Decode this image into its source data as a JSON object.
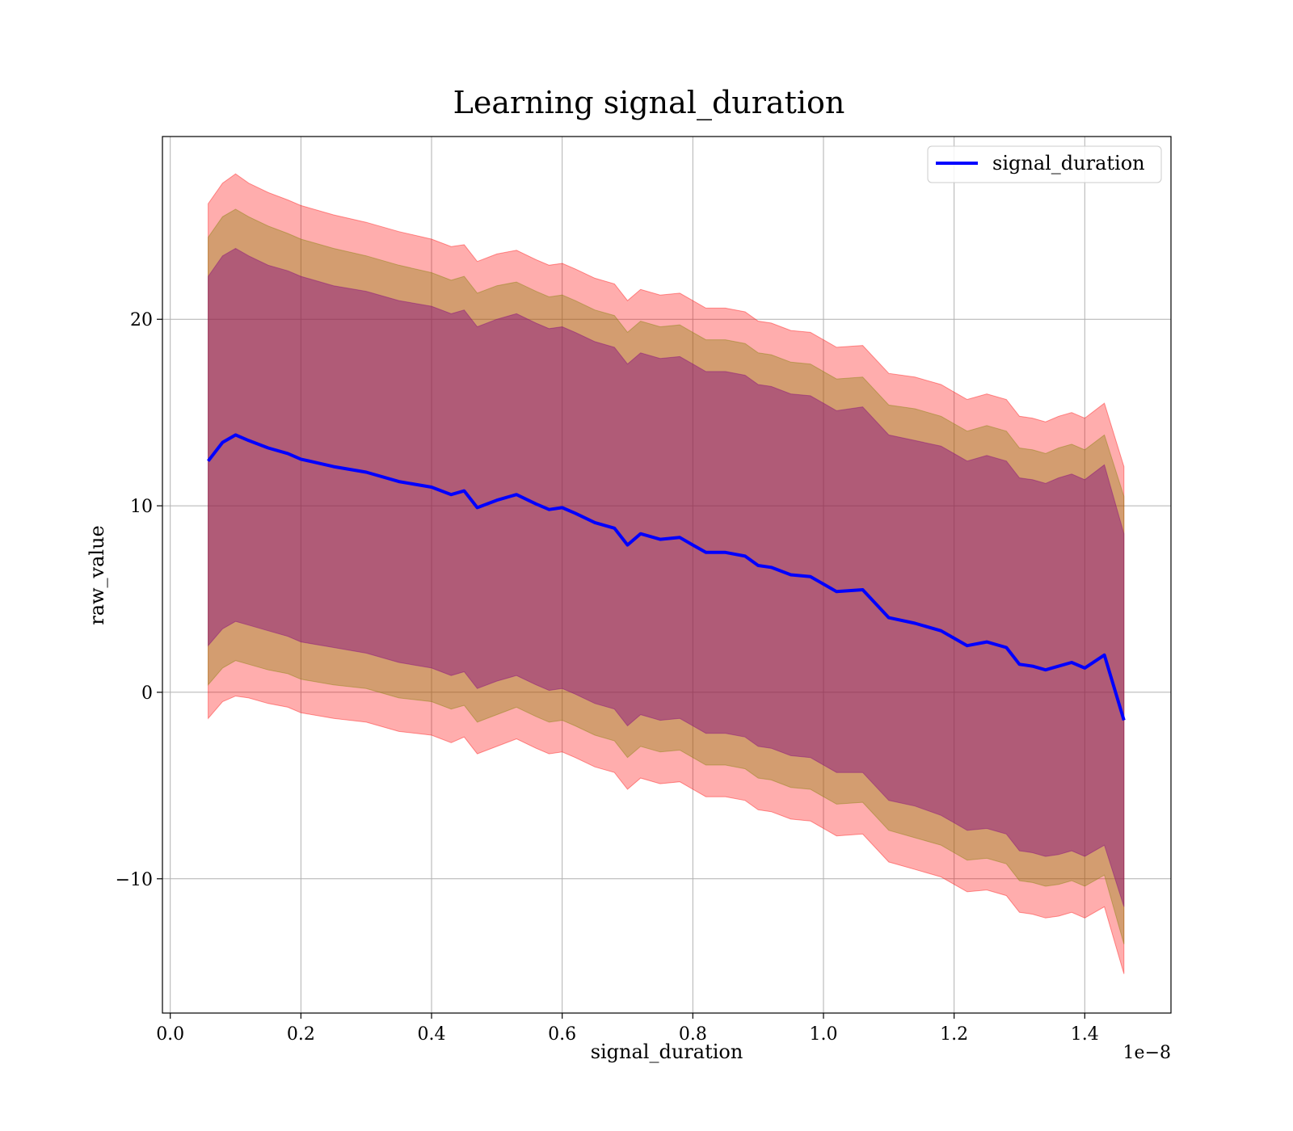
{
  "chart_data": {
    "type": "line",
    "title": "Learning signal_duration",
    "xlabel": "signal_duration",
    "ylabel": "raw_value",
    "x_offset_label": "1e−8",
    "xlim": [
      -0.012,
      1.532
    ],
    "ylim": [
      -17.2,
      29.8
    ],
    "x_ticks": [
      0.0,
      0.2,
      0.4,
      0.6,
      0.8,
      1.0,
      1.2,
      1.4
    ],
    "x_tick_labels": [
      "0.0",
      "0.2",
      "0.4",
      "0.6",
      "0.8",
      "1.0",
      "1.2",
      "1.4"
    ],
    "y_ticks": [
      -10,
      0,
      10,
      20
    ],
    "y_tick_labels": [
      "−10",
      "0",
      "10",
      "20"
    ],
    "grid": true,
    "legend": {
      "position": "top-right",
      "entries": [
        "signal_duration"
      ]
    },
    "colors": {
      "line": "#0000ff",
      "band_outer": "#ff0000",
      "band_middle": "#808000",
      "band_inner": "#800080"
    },
    "series": [
      {
        "name": "signal_duration",
        "x": [
          0.058,
          0.08,
          0.1,
          0.12,
          0.15,
          0.18,
          0.2,
          0.25,
          0.3,
          0.35,
          0.4,
          0.43,
          0.45,
          0.47,
          0.5,
          0.53,
          0.56,
          0.58,
          0.6,
          0.62,
          0.65,
          0.68,
          0.7,
          0.72,
          0.75,
          0.78,
          0.8,
          0.82,
          0.85,
          0.88,
          0.9,
          0.92,
          0.95,
          0.98,
          1.0,
          1.02,
          1.06,
          1.1,
          1.14,
          1.18,
          1.2,
          1.22,
          1.25,
          1.28,
          1.3,
          1.32,
          1.34,
          1.36,
          1.38,
          1.4,
          1.43,
          1.46
        ],
        "y": [
          12.4,
          13.4,
          13.8,
          13.5,
          13.1,
          12.8,
          12.5,
          12.1,
          11.8,
          11.3,
          11.0,
          10.6,
          10.8,
          9.9,
          10.3,
          10.6,
          10.1,
          9.8,
          9.9,
          9.6,
          9.1,
          8.8,
          7.9,
          8.5,
          8.2,
          8.3,
          7.9,
          7.5,
          7.5,
          7.3,
          6.8,
          6.7,
          6.3,
          6.2,
          5.8,
          5.4,
          5.5,
          4.0,
          3.7,
          3.3,
          2.9,
          2.5,
          2.7,
          2.4,
          1.5,
          1.4,
          1.2,
          1.4,
          1.6,
          1.3,
          2.0,
          -1.5
        ]
      }
    ],
    "bands": [
      {
        "name": "outer",
        "half_width": [
          13.8,
          13.9,
          14.0,
          13.8,
          13.7,
          13.6,
          13.6,
          13.5,
          13.4,
          13.4,
          13.3,
          13.3,
          13.2,
          13.2,
          13.2,
          13.1,
          13.1,
          13.1,
          13.1,
          13.1,
          13.1,
          13.1,
          13.1,
          13.1,
          13.1,
          13.1,
          13.1,
          13.1,
          13.1,
          13.1,
          13.1,
          13.1,
          13.1,
          13.1,
          13.1,
          13.1,
          13.1,
          13.1,
          13.2,
          13.2,
          13.2,
          13.2,
          13.3,
          13.3,
          13.3,
          13.3,
          13.3,
          13.4,
          13.4,
          13.4,
          13.5,
          13.6
        ]
      },
      {
        "name": "middle",
        "half_width": [
          12.0,
          12.1,
          12.1,
          12.0,
          11.9,
          11.8,
          11.8,
          11.7,
          11.6,
          11.6,
          11.5,
          11.5,
          11.5,
          11.5,
          11.5,
          11.4,
          11.4,
          11.4,
          11.4,
          11.4,
          11.4,
          11.4,
          11.4,
          11.4,
          11.4,
          11.4,
          11.4,
          11.4,
          11.4,
          11.4,
          11.4,
          11.4,
          11.4,
          11.4,
          11.4,
          11.4,
          11.4,
          11.4,
          11.5,
          11.5,
          11.5,
          11.5,
          11.6,
          11.6,
          11.6,
          11.6,
          11.6,
          11.7,
          11.7,
          11.7,
          11.8,
          12.0
        ]
      },
      {
        "name": "inner",
        "half_width": [
          9.9,
          10.0,
          10.0,
          9.9,
          9.8,
          9.8,
          9.8,
          9.7,
          9.7,
          9.7,
          9.7,
          9.7,
          9.7,
          9.7,
          9.7,
          9.7,
          9.7,
          9.7,
          9.7,
          9.7,
          9.7,
          9.7,
          9.7,
          9.7,
          9.7,
          9.7,
          9.7,
          9.7,
          9.7,
          9.7,
          9.7,
          9.7,
          9.7,
          9.7,
          9.7,
          9.7,
          9.8,
          9.8,
          9.8,
          9.9,
          9.9,
          9.9,
          10.0,
          10.0,
          10.0,
          10.0,
          10.0,
          10.1,
          10.1,
          10.1,
          10.2,
          10.0
        ]
      }
    ]
  }
}
